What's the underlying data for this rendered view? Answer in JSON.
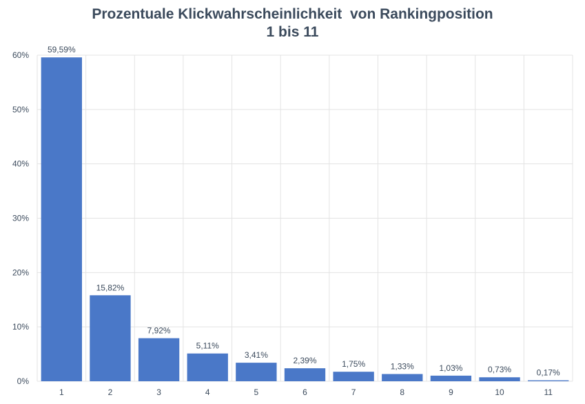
{
  "chart_data": {
    "type": "bar",
    "title": "Prozentuale Klickwahrscheinlichkeit  von Rankingposition",
    "subtitle": "1 bis 11",
    "categories": [
      "1",
      "2",
      "3",
      "4",
      "5",
      "6",
      "7",
      "8",
      "9",
      "10",
      "11"
    ],
    "values": [
      59.59,
      15.82,
      7.92,
      5.11,
      3.41,
      2.39,
      1.75,
      1.33,
      1.03,
      0.73,
      0.17
    ],
    "data_labels": [
      "59,59%",
      "15,82%",
      "7,92%",
      "5,11%",
      "3,41%",
      "2,39%",
      "1,75%",
      "1,33%",
      "1,03%",
      "0,73%",
      "0,17%"
    ],
    "y_ticks": [
      0,
      10,
      20,
      30,
      40,
      50,
      60
    ],
    "y_tick_labels": [
      "0%",
      "10%",
      "20%",
      "30%",
      "40%",
      "50%",
      "60%"
    ],
    "ylim": [
      0,
      60
    ],
    "xlabel": "",
    "ylabel": "",
    "grid": true,
    "legend": "none",
    "bar_color": "#4a78c8",
    "grid_color": "#e3e3e3",
    "text_color": "#3b4a5c"
  }
}
